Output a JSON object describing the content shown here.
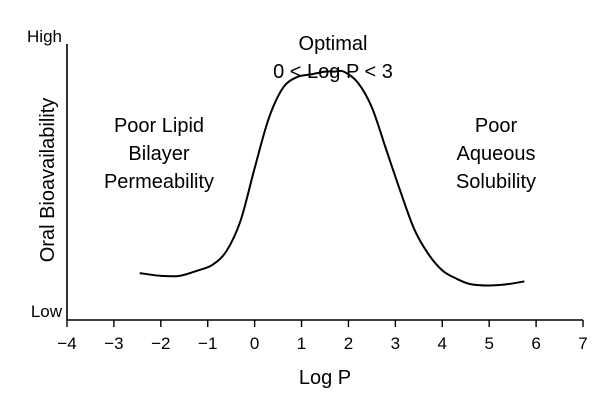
{
  "chart_data": {
    "type": "line",
    "title": "",
    "xlabel": "Log P",
    "ylabel": "Oral Bioavailability",
    "xlim": [
      -4,
      7
    ],
    "ylim": [
      0,
      1
    ],
    "x_ticks": [
      "−4",
      "−3",
      "−2",
      "−1",
      "0",
      "1",
      "2",
      "3",
      "4",
      "5",
      "6",
      "7"
    ],
    "y_high_label": "High",
    "y_low_label": "Low",
    "grid": false,
    "legend": "none",
    "line_color": "#000000",
    "series": [
      {
        "x": [
          -2.45,
          -2.0,
          -1.6,
          -1.2,
          -0.9,
          -0.6,
          -0.3,
          0.0,
          0.3,
          0.6,
          0.9,
          1.2,
          1.5,
          1.7,
          1.9,
          2.2,
          2.5,
          2.8,
          3.1,
          3.4,
          3.7,
          4.0,
          4.3,
          4.6,
          5.0,
          5.4,
          5.75
        ],
        "y": [
          0.17,
          0.16,
          0.16,
          0.18,
          0.2,
          0.25,
          0.36,
          0.55,
          0.73,
          0.84,
          0.88,
          0.89,
          0.9,
          0.9,
          0.9,
          0.86,
          0.77,
          0.62,
          0.47,
          0.33,
          0.24,
          0.18,
          0.15,
          0.13,
          0.125,
          0.13,
          0.14
        ]
      }
    ],
    "annotations": {
      "top": [
        "Optimal",
        "0 < Log P < 3"
      ],
      "left": [
        "Poor Lipid",
        "Bilayer",
        "Permeability"
      ],
      "right": [
        "Poor",
        "Aqueous",
        "Solubility"
      ]
    }
  }
}
